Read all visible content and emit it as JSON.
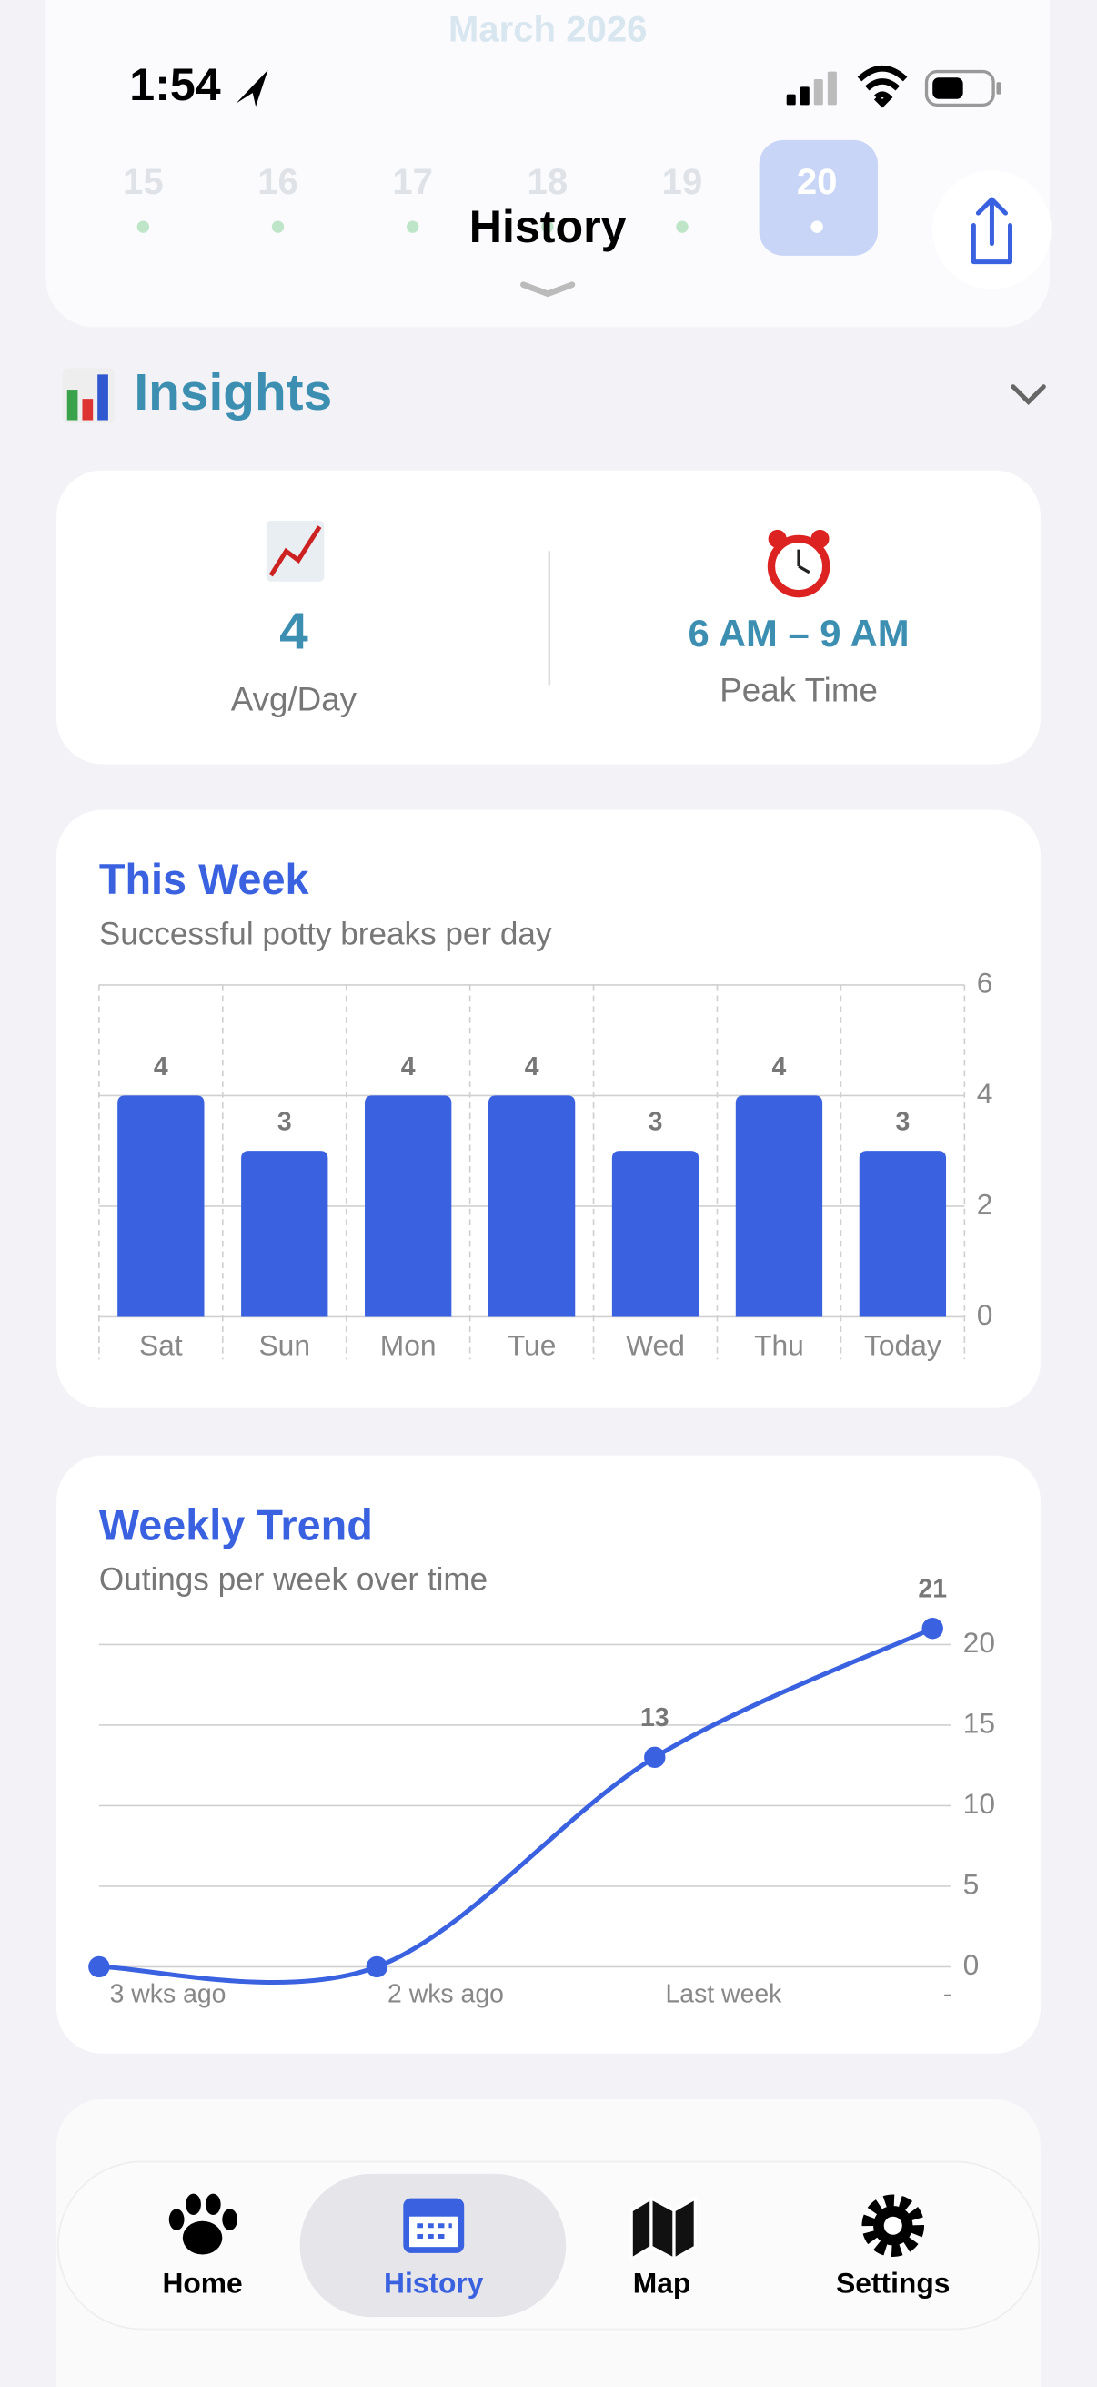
{
  "status_bar": {
    "time": "1:54"
  },
  "background_calendar": {
    "month": "March 2026",
    "days": [
      "15",
      "16",
      "17",
      "18",
      "19",
      "20"
    ]
  },
  "header": {
    "title": "History"
  },
  "insights": {
    "title": "Insights",
    "avg_value": 4,
    "avg_label": "Avg/Day",
    "peak_value": "6 AM – 9 AM",
    "peak_label": "Peak Time"
  },
  "chart_data": [
    {
      "type": "bar",
      "title": "This Week",
      "subtitle": "Successful potty breaks per day",
      "categories": [
        "Sat",
        "Sun",
        "Mon",
        "Tue",
        "Wed",
        "Thu",
        "Today"
      ],
      "values": [
        4,
        3,
        4,
        4,
        3,
        4,
        3
      ],
      "color": "#3a62e0",
      "ylim": [
        0,
        6
      ],
      "yticks": [
        0,
        2,
        4,
        6
      ],
      "grid": true
    },
    {
      "type": "line",
      "title": "Weekly Trend",
      "subtitle": "Outings per week over time",
      "categories": [
        "3 wks ago",
        "2 wks ago",
        "Last week",
        "-"
      ],
      "values": [
        0,
        0,
        13,
        21
      ],
      "value_labels": [
        null,
        null,
        "13",
        "21"
      ],
      "color": "#3a62e0",
      "ylim": [
        0,
        21
      ],
      "yticks": [
        0,
        5,
        10,
        15,
        20
      ],
      "grid": true
    }
  ],
  "tab_bar": {
    "items": [
      "Home",
      "History",
      "Map",
      "Settings"
    ],
    "selected": 1
  }
}
